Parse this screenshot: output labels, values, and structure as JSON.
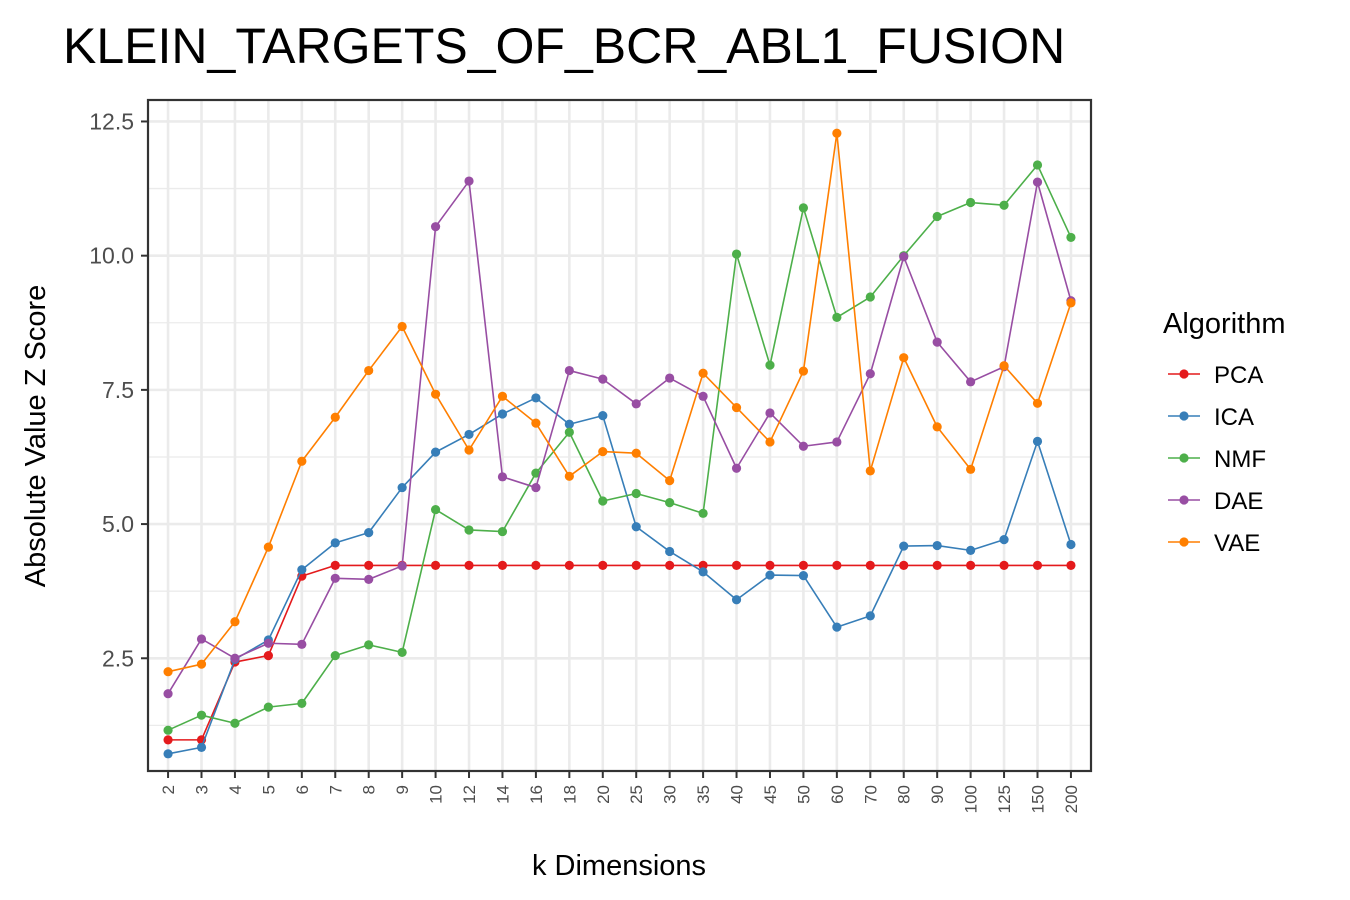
{
  "chart_data": {
    "type": "line",
    "title": "KLEIN_TARGETS_OF_BCR_ABL1_FUSION",
    "xlabel": "k Dimensions",
    "ylabel": "Absolute Value Z Score",
    "ylim": [
      0.4,
      12.9
    ],
    "yticks": [
      2.5,
      5.0,
      7.5,
      10.0,
      12.5
    ],
    "ytick_labels": [
      "2.5",
      "5.0",
      "7.5",
      "10.0",
      "12.5"
    ],
    "categories": [
      "2",
      "3",
      "4",
      "5",
      "6",
      "7",
      "8",
      "9",
      "10",
      "12",
      "14",
      "16",
      "18",
      "20",
      "25",
      "30",
      "35",
      "40",
      "45",
      "50",
      "60",
      "70",
      "80",
      "90",
      "100",
      "125",
      "150",
      "200"
    ],
    "grid": true,
    "legend": {
      "title": "Algorithm",
      "position": "right"
    },
    "series": [
      {
        "name": "PCA",
        "color": "#e41a1c",
        "values": [
          0.98,
          0.98,
          2.43,
          2.55,
          4.03,
          4.23,
          4.23,
          4.23,
          4.23,
          4.23,
          4.23,
          4.23,
          4.23,
          4.23,
          4.23,
          4.23,
          4.23,
          4.23,
          4.23,
          4.23,
          4.23,
          4.23,
          4.23,
          4.23,
          4.23,
          4.23,
          4.23,
          4.23
        ]
      },
      {
        "name": "ICA",
        "color": "#377eb8",
        "values": [
          0.72,
          0.84,
          2.48,
          2.84,
          4.15,
          4.65,
          4.84,
          5.68,
          6.34,
          6.67,
          7.05,
          7.35,
          6.86,
          7.02,
          4.95,
          4.49,
          4.11,
          3.59,
          4.05,
          4.04,
          3.08,
          3.29,
          4.59,
          4.6,
          4.51,
          4.71,
          6.54,
          4.62
        ]
      },
      {
        "name": "NMF",
        "color": "#4daf4a",
        "values": [
          1.16,
          1.44,
          1.29,
          1.59,
          1.66,
          2.55,
          2.75,
          2.61,
          5.27,
          4.89,
          4.86,
          5.95,
          6.71,
          5.43,
          5.57,
          5.4,
          5.2,
          10.03,
          7.96,
          10.89,
          8.85,
          9.23,
          10.0,
          10.73,
          10.99,
          10.94,
          11.69,
          10.34
        ]
      },
      {
        "name": "DAE",
        "color": "#984ea3",
        "values": [
          1.84,
          2.86,
          2.5,
          2.78,
          2.76,
          3.99,
          3.97,
          4.22,
          10.54,
          11.39,
          5.88,
          5.68,
          7.86,
          7.7,
          7.24,
          7.72,
          7.38,
          6.04,
          7.07,
          6.45,
          6.53,
          7.8,
          9.98,
          8.39,
          7.65,
          7.93,
          11.37,
          9.16
        ]
      },
      {
        "name": "VAE",
        "color": "#ff7f00",
        "values": [
          2.25,
          2.39,
          3.18,
          4.57,
          6.17,
          6.99,
          7.86,
          8.68,
          7.42,
          6.38,
          7.38,
          6.88,
          5.89,
          6.35,
          6.32,
          5.81,
          7.81,
          7.17,
          6.53,
          7.85,
          12.28,
          5.99,
          8.1,
          6.81,
          6.02,
          7.95,
          7.25,
          9.12
        ]
      }
    ]
  }
}
